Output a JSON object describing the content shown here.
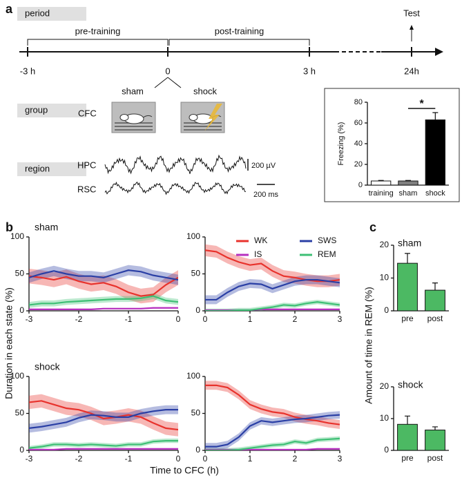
{
  "panel_labels": [
    "a",
    "b",
    "c"
  ],
  "timeline": {
    "period_label": "period",
    "phases": [
      "pre-training",
      "post-training"
    ],
    "time_labels": [
      "-3 h",
      "0",
      "3 h",
      "24h"
    ],
    "test_label": "Test",
    "group_label": "group",
    "groups": [
      "sham",
      "shock"
    ],
    "cfc_label": "CFC",
    "region_label": "region",
    "regions": [
      "HPC",
      "RSC"
    ],
    "scale_voltage": "200 µV",
    "scale_time": "200 ms"
  },
  "panel_b": {
    "ylabel": "Duration in each state (%)",
    "xlabel": "Time to CFC (h)"
  },
  "panel_c": {
    "ylabel": "Amount of time in REM (%)"
  },
  "chart_data": [
    {
      "type": "bar",
      "ylabel": "Freezing (%)",
      "categories": [
        "training",
        "sham",
        "shock"
      ],
      "values": [
        4,
        4,
        63
      ],
      "errors": [
        0.5,
        0.5,
        7
      ],
      "colors": [
        "#ffffff",
        "#808080",
        "#000000"
      ],
      "ylim": [
        0,
        80
      ],
      "yticks": [
        0,
        20,
        40,
        60,
        80
      ],
      "annotation": "*"
    },
    {
      "type": "line",
      "title": "sham",
      "x": [
        -3,
        -2.75,
        -2.5,
        -2.25,
        -2,
        -1.75,
        -1.5,
        -1.25,
        -1,
        -0.75,
        -0.5,
        -0.25,
        0
      ],
      "xlim": [
        -3,
        0
      ],
      "xticks": [
        -3,
        -2,
        -1,
        0
      ],
      "ylim": [
        0,
        100
      ],
      "yticks": [
        0,
        50,
        100
      ],
      "series": [
        {
          "color": "#e8322c",
          "values": [
            47,
            45,
            42,
            46,
            40,
            36,
            38,
            33,
            25,
            20,
            22,
            35,
            45
          ],
          "error": 10
        },
        {
          "color": "#b62fbf",
          "values": [
            2,
            2,
            2,
            2,
            2,
            2,
            3,
            3,
            3,
            3,
            4,
            4,
            4
          ],
          "error": 1
        },
        {
          "color": "#2a3fa5",
          "values": [
            45,
            50,
            54,
            50,
            47,
            47,
            45,
            50,
            55,
            53,
            48,
            45,
            42
          ],
          "error": 7
        },
        {
          "color": "#3dbf74",
          "values": [
            8,
            10,
            10,
            12,
            13,
            14,
            15,
            16,
            16,
            17,
            20,
            14,
            12
          ],
          "error": 4
        }
      ]
    },
    {
      "type": "line",
      "x": [
        0,
        0.25,
        0.5,
        0.75,
        1,
        1.25,
        1.5,
        1.75,
        2,
        2.25,
        2.5,
        2.75,
        3
      ],
      "xlim": [
        0,
        3
      ],
      "xticks": [
        0,
        1,
        2,
        3
      ],
      "ylim": [
        0,
        100
      ],
      "yticks": [
        0,
        50,
        100
      ],
      "legend": "upper right",
      "series": [
        {
          "name": "WK",
          "color": "#e8322c",
          "values": [
            82,
            80,
            72,
            66,
            62,
            64,
            54,
            47,
            45,
            42,
            40,
            40,
            42
          ],
          "error": 8
        },
        {
          "name": "IS",
          "color": "#b62fbf",
          "values": [
            1,
            1,
            1,
            1,
            1,
            2,
            2,
            2,
            2,
            2,
            2,
            2,
            2
          ],
          "error": 1
        },
        {
          "name": "SWS",
          "color": "#2a3fa5",
          "values": [
            15,
            15,
            25,
            33,
            37,
            36,
            30,
            35,
            40,
            42,
            42,
            40,
            38
          ],
          "error": 6
        },
        {
          "name": "REM",
          "color": "#3dbf74",
          "values": [
            0,
            0,
            0,
            1,
            1,
            3,
            5,
            8,
            7,
            10,
            12,
            10,
            8
          ],
          "error": 3
        }
      ]
    },
    {
      "type": "line",
      "title": "shock",
      "x": [
        -3,
        -2.75,
        -2.5,
        -2.25,
        -2,
        -1.75,
        -1.5,
        -1.25,
        -1,
        -0.75,
        -0.5,
        -0.25,
        0
      ],
      "xlim": [
        -3,
        0
      ],
      "xticks": [
        -3,
        -2,
        -1,
        0
      ],
      "ylim": [
        0,
        100
      ],
      "yticks": [
        0,
        50,
        100
      ],
      "series": [
        {
          "color": "#e8322c",
          "values": [
            65,
            67,
            62,
            57,
            55,
            50,
            43,
            45,
            48,
            45,
            37,
            30,
            28
          ],
          "error": 9
        },
        {
          "color": "#b62fbf",
          "values": [
            1,
            1,
            1,
            2,
            2,
            2,
            2,
            2,
            2,
            2,
            2,
            2,
            2
          ],
          "error": 1
        },
        {
          "color": "#2a3fa5",
          "values": [
            30,
            32,
            35,
            38,
            44,
            48,
            47,
            45,
            45,
            50,
            53,
            55,
            55
          ],
          "error": 6
        },
        {
          "color": "#3dbf74",
          "values": [
            3,
            5,
            8,
            8,
            7,
            8,
            7,
            6,
            8,
            8,
            12,
            13,
            13
          ],
          "error": 3
        }
      ]
    },
    {
      "type": "line",
      "x": [
        0,
        0.25,
        0.5,
        0.75,
        1,
        1.25,
        1.5,
        1.75,
        2,
        2.25,
        2.5,
        2.75,
        3
      ],
      "xlim": [
        0,
        3
      ],
      "xticks": [
        0,
        1,
        2,
        3
      ],
      "ylim": [
        0,
        100
      ],
      "yticks": [
        0,
        50,
        100
      ],
      "series": [
        {
          "color": "#e8322c",
          "values": [
            88,
            88,
            85,
            75,
            62,
            56,
            52,
            50,
            45,
            42,
            40,
            37,
            35
          ],
          "error": 6
        },
        {
          "color": "#b62fbf",
          "values": [
            1,
            1,
            1,
            1,
            1,
            1,
            1,
            1,
            1,
            1,
            2,
            2,
            2
          ],
          "error": 1
        },
        {
          "color": "#2a3fa5",
          "values": [
            5,
            5,
            8,
            18,
            33,
            40,
            38,
            40,
            42,
            43,
            45,
            47,
            48
          ],
          "error": 5
        },
        {
          "color": "#3dbf74",
          "values": [
            0,
            0,
            0,
            1,
            3,
            5,
            7,
            8,
            12,
            10,
            14,
            15,
            16
          ],
          "error": 3
        }
      ]
    },
    {
      "type": "bar",
      "title": "sham",
      "categories": [
        "pre",
        "post"
      ],
      "values": [
        14.5,
        6.3
      ],
      "errors": [
        3,
        2.2
      ],
      "color": "#4cb963",
      "ylim": [
        0,
        20
      ],
      "yticks": [
        0,
        10,
        20
      ]
    },
    {
      "type": "bar",
      "title": "shock",
      "categories": [
        "pre",
        "post"
      ],
      "values": [
        8.2,
        6.4
      ],
      "errors": [
        2.6,
        1
      ],
      "color": "#4cb963",
      "ylim": [
        0,
        20
      ],
      "yticks": [
        0,
        10,
        20
      ]
    }
  ]
}
